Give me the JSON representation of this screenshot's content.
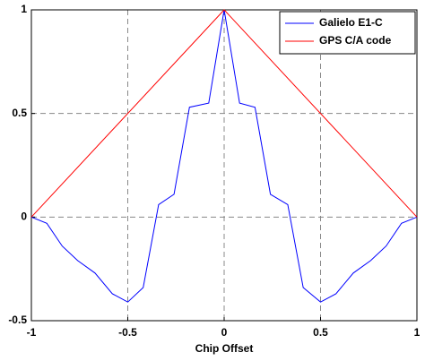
{
  "chart_data": {
    "type": "line",
    "xlabel": "Chip Offset",
    "xlim": [
      -1,
      1
    ],
    "ylim": [
      -0.5,
      1
    ],
    "xticks": [
      -1,
      -0.5,
      0,
      0.5,
      1
    ],
    "yticks": [
      -0.5,
      0,
      0.5,
      1
    ],
    "grid": true,
    "legend": "upper right",
    "series": [
      {
        "name": "Galielo E1-C",
        "color": "#0000ff",
        "x": [
          -1,
          -0.92,
          -0.84,
          -0.76,
          -0.67,
          -0.58,
          -0.5,
          -0.42,
          -0.34,
          -0.26,
          -0.18,
          -0.08,
          0,
          0.08,
          0.16,
          0.24,
          0.33,
          0.41,
          0.5,
          0.58,
          0.67,
          0.76,
          0.84,
          0.92,
          1
        ],
        "values": [
          0,
          -0.03,
          -0.14,
          -0.21,
          -0.27,
          -0.37,
          -0.41,
          -0.34,
          0.06,
          0.11,
          0.53,
          0.55,
          1,
          0.55,
          0.53,
          0.11,
          0.06,
          -0.34,
          -0.41,
          -0.37,
          -0.27,
          -0.21,
          -0.14,
          -0.03,
          0
        ]
      },
      {
        "name": "GPS C/A code",
        "color": "#ff0000",
        "x": [
          -1,
          0,
          1
        ],
        "values": [
          0,
          1,
          0
        ]
      }
    ]
  }
}
